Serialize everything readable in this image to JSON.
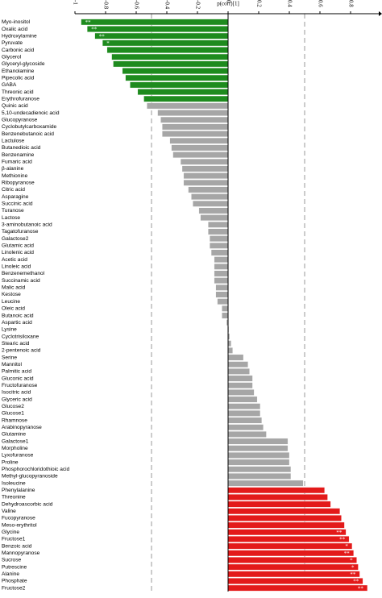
{
  "chart_data": {
    "type": "barh",
    "x_label": "p(corr)[1]",
    "xlim": [
      -1,
      1
    ],
    "xticks": [
      -1,
      -0.8,
      -0.6,
      -0.4,
      -0.2,
      0,
      0.2,
      0.4,
      0.6,
      0.8
    ],
    "reference_lines": [
      -0.5,
      0.5
    ],
    "categories": [
      "Myo-inositol",
      "Oxalic acid",
      "Hydroxylamine",
      "Pyruvate",
      "Carbonic acid",
      "Glycerol",
      "Glyceryl-glycoside",
      "Ethanolamine",
      "Pipecolic acid",
      "GABA",
      "Threonic acid",
      "Erythrofuranose",
      "Quinic acid",
      "5,10-undecadienoic acid",
      "Glucopyranose",
      "Cyclobutylcarboxamide",
      "Benzenebutanoic acid",
      "Lactulose",
      "Butanedioic acid",
      "Benzenamine",
      "Fumaric acid",
      "β-alanine",
      "Methionine",
      "Ribopyranose",
      "Citric acid",
      "Asparagine",
      "Succinic acid",
      "Turanose",
      "Lactose",
      "3-aminobutanoic acid",
      "Tagatofuranose",
      "Galactose2",
      "Glutamic acid",
      "Linolenic acid",
      "Acetic acid",
      "Linoleic acid",
      "Benzenemethanol",
      "Succinamic acid",
      "Malic acid",
      "Kestose",
      "Leucine",
      "Oleic acid",
      "Butanoic acid",
      "Aspartic acid",
      "Lysine",
      "Cyclotrisiloxane",
      "Stearic acid",
      "2-pentenoic acid",
      "Serine",
      "Mannitol",
      "Palmitic acid",
      "Gluconic acid",
      "Fructofuranose",
      "Isocitric acid",
      "Glyceric acid",
      "Glucose2",
      "Glucose1",
      "Rhamnose",
      "Arabinopyranose",
      "Glutamine",
      "Galactose1",
      "Morpholine",
      "Lyxofuranose",
      "Proline",
      "Phosphorochloridothioic acid",
      "Methyl-glucopyranoside",
      "Isoleucine",
      "Phenylalanine",
      "Threonine",
      "Dehydroascorbic acid",
      "Valine",
      "Fucopyranose",
      "Meso-erythritol",
      "Glycine",
      "Fructose1",
      "Benzoic acid",
      "Mannopyranose",
      "Sucrose",
      "Putrescine",
      "Alanine",
      "Phosphate",
      "Fructose2"
    ],
    "values": [
      -0.96,
      -0.92,
      -0.87,
      -0.82,
      -0.79,
      -0.76,
      -0.75,
      -0.69,
      -0.67,
      -0.64,
      -0.59,
      -0.55,
      -0.53,
      -0.46,
      -0.44,
      -0.43,
      -0.43,
      -0.38,
      -0.37,
      -0.36,
      -0.31,
      -0.3,
      -0.29,
      -0.29,
      -0.26,
      -0.24,
      -0.23,
      -0.19,
      -0.18,
      -0.13,
      -0.13,
      -0.12,
      -0.12,
      -0.11,
      -0.09,
      -0.09,
      -0.09,
      -0.09,
      -0.08,
      -0.08,
      -0.07,
      -0.04,
      -0.04,
      -0.01,
      0.005,
      0.01,
      0.02,
      0.03,
      0.1,
      0.13,
      0.14,
      0.16,
      0.16,
      0.17,
      0.19,
      0.21,
      0.21,
      0.22,
      0.23,
      0.25,
      0.39,
      0.39,
      0.4,
      0.4,
      0.41,
      0.41,
      0.49,
      0.63,
      0.65,
      0.67,
      0.73,
      0.74,
      0.76,
      0.77,
      0.79,
      0.81,
      0.82,
      0.84,
      0.85,
      0.86,
      0.88,
      0.91
    ],
    "colors": [
      "#1e8b1e",
      "#1e8b1e",
      "#1e8b1e",
      "#1e8b1e",
      "#1e8b1e",
      "#1e8b1e",
      "#1e8b1e",
      "#1e8b1e",
      "#1e8b1e",
      "#1e8b1e",
      "#1e8b1e",
      "#1e8b1e",
      "#a6a6a6",
      "#a6a6a6",
      "#a6a6a6",
      "#a6a6a6",
      "#a6a6a6",
      "#a6a6a6",
      "#a6a6a6",
      "#a6a6a6",
      "#a6a6a6",
      "#a6a6a6",
      "#a6a6a6",
      "#a6a6a6",
      "#a6a6a6",
      "#a6a6a6",
      "#a6a6a6",
      "#a6a6a6",
      "#a6a6a6",
      "#a6a6a6",
      "#a6a6a6",
      "#a6a6a6",
      "#a6a6a6",
      "#a6a6a6",
      "#a6a6a6",
      "#a6a6a6",
      "#a6a6a6",
      "#a6a6a6",
      "#a6a6a6",
      "#a6a6a6",
      "#a6a6a6",
      "#a6a6a6",
      "#a6a6a6",
      "#a6a6a6",
      "#a6a6a6",
      "#a6a6a6",
      "#a6a6a6",
      "#a6a6a6",
      "#a6a6a6",
      "#a6a6a6",
      "#a6a6a6",
      "#a6a6a6",
      "#a6a6a6",
      "#a6a6a6",
      "#a6a6a6",
      "#a6a6a6",
      "#a6a6a6",
      "#a6a6a6",
      "#a6a6a6",
      "#a6a6a6",
      "#a6a6a6",
      "#a6a6a6",
      "#a6a6a6",
      "#a6a6a6",
      "#a6a6a6",
      "#a6a6a6",
      "#a6a6a6",
      "#e31a1a",
      "#e31a1a",
      "#e31a1a",
      "#e31a1a",
      "#e31a1a",
      "#e31a1a",
      "#e31a1a",
      "#e31a1a",
      "#e31a1a",
      "#e31a1a",
      "#e31a1a",
      "#e31a1a",
      "#e31a1a",
      "#e31a1a",
      "#e31a1a"
    ],
    "markers": [
      "**",
      "**",
      "**",
      "*",
      null,
      null,
      null,
      null,
      null,
      null,
      null,
      null,
      null,
      null,
      null,
      null,
      null,
      null,
      null,
      null,
      null,
      null,
      null,
      null,
      null,
      null,
      null,
      null,
      null,
      null,
      null,
      null,
      null,
      null,
      null,
      null,
      null,
      null,
      null,
      null,
      null,
      null,
      null,
      null,
      null,
      null,
      null,
      null,
      null,
      null,
      null,
      null,
      null,
      null,
      null,
      null,
      null,
      null,
      null,
      null,
      null,
      null,
      null,
      null,
      null,
      null,
      null,
      null,
      null,
      null,
      null,
      null,
      null,
      "**",
      "**",
      "*",
      "**",
      "*",
      "*",
      "**",
      "**",
      "**"
    ]
  }
}
